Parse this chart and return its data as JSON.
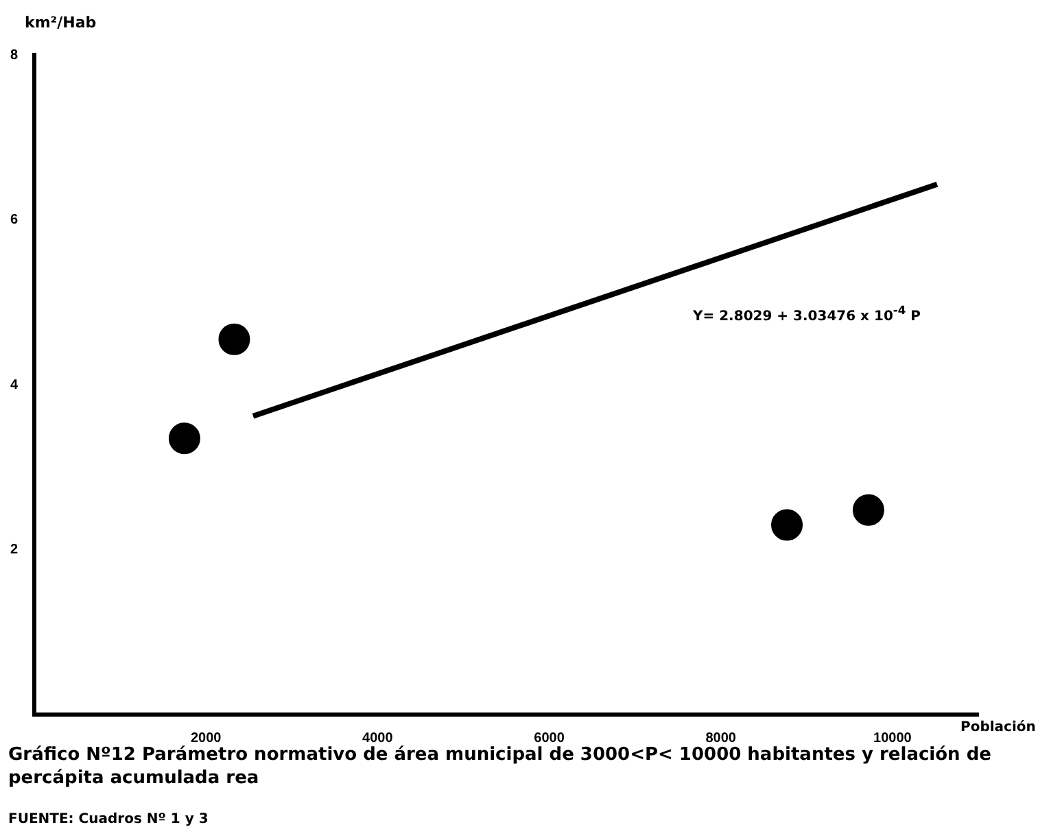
{
  "chart_data": {
    "type": "scatter",
    "title": "Gráfico Nº12  Parámetro normativo de área municipal de 3000<P< 10000 habitantes y relación de percápita acumulada rea",
    "xlabel": "Población",
    "ylabel": "km²/Hab",
    "xlim": [
      0,
      11000
    ],
    "ylim": [
      0,
      8
    ],
    "xticks": [
      2000,
      4000,
      6000,
      8000,
      10000
    ],
    "yticks": [
      2,
      4,
      6,
      8
    ],
    "x": [
      1750,
      2330,
      8770,
      9720
    ],
    "series": [
      {
        "color": "#000000",
        "marker": "circle",
        "values": [
          3.35,
          4.55,
          2.3,
          2.48
        ]
      },
      {
        "type": "line",
        "color": "#000000",
        "marker": "none",
        "x": [
          2550,
          10520
        ],
        "values": [
          3.62,
          6.43
        ]
      }
    ],
    "annotations": [
      "Y= 2.8029 + 3.03476 x 10$^{-4}$ P",
      "FUENTE: Cuadros Nº 1 y 3"
    ]
  }
}
